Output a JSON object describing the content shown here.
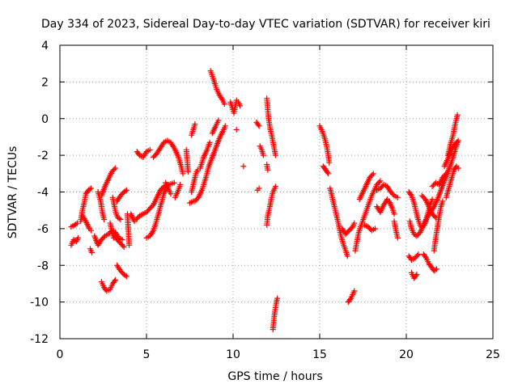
{
  "chart_data": {
    "type": "scatter",
    "title": "Day 334 of 2023, Sidereal Day-to-day VTEC variation (SDTVAR) for receiver kiri",
    "xlabel": "GPS time / hours",
    "ylabel": "SDTVAR / TECUs",
    "xlim": [
      0,
      25
    ],
    "ylim": [
      -12,
      4
    ],
    "xticks": [
      0,
      5,
      10,
      15,
      20,
      25
    ],
    "yticks": [
      -12,
      -10,
      -8,
      -6,
      -4,
      -2,
      0,
      2,
      4
    ],
    "grid": true,
    "marker": "+",
    "color": "#ff0000",
    "tracks": [
      [
        [
          0.65,
          -6.9
        ],
        [
          0.8,
          -6.6
        ],
        [
          0.95,
          -6.7
        ],
        [
          1.05,
          -6.5
        ]
      ],
      [
        [
          0.65,
          -5.9
        ],
        [
          0.85,
          -5.8
        ],
        [
          1.0,
          -5.7
        ]
      ],
      [
        [
          1.2,
          -5.6
        ],
        [
          1.3,
          -5.0
        ],
        [
          1.4,
          -4.6
        ],
        [
          1.5,
          -4.1
        ],
        [
          1.65,
          -3.9
        ],
        [
          1.8,
          -3.8
        ]
      ],
      [
        [
          1.3,
          -5.3
        ],
        [
          1.5,
          -5.6
        ],
        [
          1.7,
          -6.0
        ],
        [
          1.8,
          -6.1
        ]
      ],
      [
        [
          1.75,
          -7.1
        ],
        [
          1.85,
          -7.3
        ]
      ],
      [
        [
          2.0,
          -6.4
        ],
        [
          2.2,
          -6.9
        ],
        [
          2.4,
          -6.6
        ],
        [
          2.6,
          -6.4
        ],
        [
          2.8,
          -6.3
        ],
        [
          3.0,
          -6.1
        ],
        [
          3.2,
          -6.2
        ],
        [
          3.4,
          -6.5
        ],
        [
          3.6,
          -6.6
        ]
      ],
      [
        [
          2.2,
          -4.0
        ],
        [
          2.35,
          -4.5
        ],
        [
          2.45,
          -5.1
        ],
        [
          2.55,
          -5.5
        ]
      ],
      [
        [
          2.4,
          -4.2
        ],
        [
          2.6,
          -3.7
        ],
        [
          2.8,
          -3.3
        ],
        [
          3.0,
          -2.9
        ],
        [
          3.2,
          -2.7
        ]
      ],
      [
        [
          2.4,
          -8.9
        ],
        [
          2.55,
          -9.2
        ],
        [
          2.7,
          -9.4
        ],
        [
          2.9,
          -9.3
        ],
        [
          3.05,
          -9.0
        ],
        [
          3.2,
          -8.8
        ]
      ],
      [
        [
          2.9,
          -5.7
        ],
        [
          3.0,
          -6.1
        ],
        [
          3.1,
          -6.5
        ]
      ],
      [
        [
          3.05,
          -4.3
        ],
        [
          3.15,
          -4.8
        ],
        [
          3.25,
          -5.2
        ],
        [
          3.35,
          -5.4
        ],
        [
          3.5,
          -5.5
        ]
      ],
      [
        [
          3.1,
          -6.3
        ],
        [
          3.3,
          -6.6
        ],
        [
          3.5,
          -6.8
        ],
        [
          3.7,
          -7.0
        ]
      ],
      [
        [
          3.3,
          -8.0
        ],
        [
          3.5,
          -8.3
        ],
        [
          3.7,
          -8.5
        ],
        [
          3.85,
          -8.6
        ]
      ],
      [
        [
          3.3,
          -4.5
        ],
        [
          3.5,
          -4.2
        ],
        [
          3.7,
          -4.0
        ],
        [
          3.85,
          -3.9
        ]
      ],
      [
        [
          4.1,
          -5.2
        ],
        [
          4.3,
          -5.6
        ],
        [
          4.4,
          -5.5
        ],
        [
          4.6,
          -5.3
        ],
        [
          4.8,
          -5.2
        ],
        [
          5.0,
          -5.1
        ],
        [
          5.2,
          -4.9
        ],
        [
          5.4,
          -4.7
        ],
        [
          5.6,
          -4.3
        ],
        [
          5.8,
          -3.9
        ],
        [
          6.0,
          -3.7
        ],
        [
          6.3,
          -3.6
        ],
        [
          6.6,
          -3.5
        ]
      ],
      [
        [
          3.9,
          -5.2
        ],
        [
          4.0,
          -6.9
        ]
      ],
      [
        [
          4.45,
          -1.8
        ],
        [
          4.6,
          -2.0
        ],
        [
          4.8,
          -2.1
        ],
        [
          5.0,
          -1.8
        ],
        [
          5.2,
          -1.7
        ]
      ],
      [
        [
          5.4,
          -2.1
        ],
        [
          5.6,
          -1.9
        ],
        [
          5.8,
          -1.6
        ],
        [
          6.0,
          -1.3
        ],
        [
          6.2,
          -1.2
        ],
        [
          6.4,
          -1.3
        ],
        [
          6.6,
          -1.6
        ],
        [
          6.8,
          -2.0
        ],
        [
          6.95,
          -2.4
        ]
      ],
      [
        [
          5.0,
          -6.5
        ],
        [
          5.2,
          -6.4
        ],
        [
          5.4,
          -6.1
        ],
        [
          5.6,
          -5.5
        ],
        [
          5.8,
          -4.8
        ],
        [
          6.0,
          -4.1
        ],
        [
          6.2,
          -3.6
        ]
      ],
      [
        [
          6.1,
          -3.5
        ],
        [
          6.25,
          -3.8
        ],
        [
          6.4,
          -4.1
        ]
      ],
      [
        [
          6.65,
          -4.3
        ],
        [
          6.8,
          -4.0
        ],
        [
          6.95,
          -3.6
        ]
      ],
      [
        [
          6.9,
          -2.3
        ],
        [
          7.0,
          -2.6
        ],
        [
          7.1,
          -3.0
        ]
      ],
      [
        [
          7.3,
          -1.7
        ],
        [
          7.4,
          -2.9
        ]
      ],
      [
        [
          7.5,
          -4.6
        ],
        [
          7.7,
          -4.5
        ]
      ],
      [
        [
          7.6,
          -4.0
        ],
        [
          7.75,
          -3.4
        ],
        [
          7.85,
          -3.0
        ],
        [
          7.95,
          -2.8
        ]
      ],
      [
        [
          7.6,
          -0.9
        ],
        [
          7.7,
          -0.6
        ],
        [
          7.8,
          -0.3
        ]
      ],
      [
        [
          7.8,
          -4.5
        ],
        [
          8.0,
          -4.3
        ],
        [
          8.2,
          -3.9
        ],
        [
          8.4,
          -3.3
        ],
        [
          8.6,
          -2.6
        ],
        [
          8.8,
          -2.1
        ],
        [
          9.0,
          -1.6
        ],
        [
          9.2,
          -1.1
        ],
        [
          9.4,
          -0.7
        ],
        [
          9.55,
          -0.4
        ]
      ],
      [
        [
          8.8,
          -0.8
        ],
        [
          9.0,
          -0.4
        ],
        [
          9.15,
          -0.1
        ]
      ],
      [
        [
          8.1,
          -2.7
        ],
        [
          8.3,
          -2.1
        ],
        [
          8.5,
          -1.7
        ],
        [
          8.65,
          -1.3
        ]
      ],
      [
        [
          8.7,
          2.6
        ],
        [
          8.85,
          2.2
        ],
        [
          8.95,
          1.9
        ],
        [
          9.05,
          1.6
        ],
        [
          9.2,
          1.3
        ],
        [
          9.4,
          1.0
        ],
        [
          9.5,
          0.8
        ]
      ],
      [
        [
          9.85,
          0.9
        ],
        [
          9.95,
          0.6
        ],
        [
          10.05,
          0.3
        ],
        [
          10.2,
          1.0
        ],
        [
          10.3,
          0.9
        ],
        [
          10.4,
          0.7
        ]
      ],
      [
        [
          10.2,
          -0.6
        ]
      ],
      [
        [
          10.6,
          -2.6
        ]
      ],
      [
        [
          11.35,
          -0.2
        ],
        [
          11.5,
          -0.4
        ]
      ],
      [
        [
          11.55,
          -1.5
        ],
        [
          11.65,
          -1.7
        ],
        [
          11.75,
          -2.0
        ]
      ],
      [
        [
          11.4,
          -3.9
        ],
        [
          11.5,
          -3.8
        ]
      ],
      [
        [
          11.95,
          1.1
        ],
        [
          12.0,
          0.5
        ],
        [
          12.05,
          0.0
        ],
        [
          12.15,
          -0.6
        ],
        [
          12.25,
          -1.0
        ],
        [
          12.35,
          -1.5
        ],
        [
          12.45,
          -2.0
        ]
      ],
      [
        [
          11.95,
          -2.5
        ],
        [
          12.0,
          -2.8
        ]
      ],
      [
        [
          11.95,
          -5.8
        ],
        [
          12.0,
          -5.3
        ],
        [
          12.1,
          -4.9
        ],
        [
          12.2,
          -4.4
        ],
        [
          12.3,
          -4.0
        ],
        [
          12.45,
          -3.7
        ]
      ],
      [
        [
          12.3,
          -11.5
        ],
        [
          12.35,
          -11.0
        ],
        [
          12.4,
          -10.6
        ],
        [
          12.5,
          -10.0
        ],
        [
          12.55,
          -9.8
        ]
      ],
      [
        [
          15.0,
          -0.4
        ],
        [
          15.15,
          -0.7
        ],
        [
          15.3,
          -1.1
        ],
        [
          15.4,
          -1.5
        ],
        [
          15.5,
          -2.0
        ],
        [
          15.55,
          -2.4
        ]
      ],
      [
        [
          15.2,
          -2.6
        ],
        [
          15.35,
          -2.8
        ],
        [
          15.5,
          -3.0
        ]
      ],
      [
        [
          15.6,
          -3.8
        ],
        [
          15.7,
          -4.2
        ],
        [
          15.8,
          -4.6
        ],
        [
          15.9,
          -5.0
        ],
        [
          16.0,
          -5.4
        ],
        [
          16.1,
          -5.8
        ],
        [
          16.2,
          -6.3
        ],
        [
          16.35,
          -6.8
        ],
        [
          16.5,
          -7.2
        ],
        [
          16.6,
          -7.5
        ]
      ],
      [
        [
          16.3,
          -6.0
        ],
        [
          16.5,
          -6.3
        ],
        [
          16.7,
          -6.1
        ],
        [
          16.9,
          -5.9
        ],
        [
          17.0,
          -5.7
        ]
      ],
      [
        [
          16.65,
          -10.0
        ],
        [
          16.8,
          -9.8
        ],
        [
          16.9,
          -9.6
        ],
        [
          17.0,
          -9.4
        ]
      ],
      [
        [
          17.05,
          -7.2
        ],
        [
          17.15,
          -6.7
        ],
        [
          17.25,
          -6.2
        ],
        [
          17.4,
          -5.8
        ],
        [
          17.55,
          -5.4
        ],
        [
          17.7,
          -5.0
        ],
        [
          17.85,
          -4.6
        ],
        [
          18.0,
          -4.2
        ],
        [
          18.15,
          -3.9
        ],
        [
          18.3,
          -3.6
        ],
        [
          18.5,
          -3.4
        ]
      ],
      [
        [
          17.3,
          -4.4
        ],
        [
          17.5,
          -4.0
        ],
        [
          17.7,
          -3.6
        ],
        [
          17.9,
          -3.2
        ],
        [
          18.1,
          -3.0
        ]
      ],
      [
        [
          17.6,
          -5.8
        ],
        [
          17.8,
          -5.9
        ],
        [
          18.0,
          -6.1
        ],
        [
          18.2,
          -6.0
        ]
      ],
      [
        [
          18.3,
          -3.9
        ],
        [
          18.5,
          -3.8
        ],
        [
          18.7,
          -3.6
        ],
        [
          18.9,
          -3.7
        ],
        [
          19.1,
          -4.0
        ],
        [
          19.3,
          -4.2
        ],
        [
          19.5,
          -4.3
        ]
      ],
      [
        [
          18.3,
          -4.8
        ],
        [
          18.5,
          -5.1
        ],
        [
          18.7,
          -4.7
        ],
        [
          18.9,
          -4.4
        ]
      ],
      [
        [
          19.0,
          -4.5
        ],
        [
          19.2,
          -4.9
        ],
        [
          19.3,
          -5.2
        ]
      ],
      [
        [
          19.3,
          -5.6
        ],
        [
          19.4,
          -6.1
        ],
        [
          19.5,
          -6.5
        ]
      ],
      [
        [
          20.15,
          -4.0
        ],
        [
          20.3,
          -4.2
        ],
        [
          20.45,
          -4.6
        ],
        [
          20.55,
          -5.0
        ],
        [
          20.65,
          -5.4
        ],
        [
          20.75,
          -5.7
        ],
        [
          20.85,
          -5.9
        ]
      ],
      [
        [
          20.2,
          -5.6
        ],
        [
          20.3,
          -6.0
        ],
        [
          20.45,
          -6.3
        ],
        [
          20.6,
          -6.4
        ],
        [
          20.8,
          -6.2
        ],
        [
          21.0,
          -5.8
        ],
        [
          21.2,
          -5.4
        ],
        [
          21.4,
          -5.1
        ],
        [
          21.6,
          -4.8
        ],
        [
          21.8,
          -4.4
        ],
        [
          22.0,
          -3.9
        ],
        [
          22.2,
          -3.4
        ],
        [
          22.4,
          -2.9
        ],
        [
          22.6,
          -2.4
        ],
        [
          22.8,
          -1.8
        ],
        [
          22.95,
          -1.3
        ]
      ],
      [
        [
          20.15,
          -7.5
        ],
        [
          20.3,
          -7.7
        ],
        [
          20.5,
          -7.6
        ],
        [
          20.7,
          -7.4
        ]
      ],
      [
        [
          20.3,
          -8.4
        ],
        [
          20.45,
          -8.7
        ],
        [
          20.6,
          -8.5
        ]
      ],
      [
        [
          20.9,
          -4.2
        ],
        [
          21.1,
          -4.4
        ],
        [
          21.3,
          -4.8
        ],
        [
          21.5,
          -5.2
        ],
        [
          21.7,
          -5.4
        ]
      ],
      [
        [
          21.05,
          -5.8
        ],
        [
          21.2,
          -5.3
        ],
        [
          21.35,
          -4.8
        ],
        [
          21.5,
          -4.4
        ]
      ],
      [
        [
          21.0,
          -7.4
        ],
        [
          21.15,
          -7.6
        ],
        [
          21.3,
          -7.9
        ],
        [
          21.45,
          -8.1
        ],
        [
          21.6,
          -8.3
        ],
        [
          21.75,
          -8.2
        ]
      ],
      [
        [
          21.5,
          -3.7
        ],
        [
          21.7,
          -3.5
        ],
        [
          21.9,
          -3.6
        ],
        [
          22.1,
          -3.2
        ],
        [
          22.3,
          -3.0
        ]
      ],
      [
        [
          21.6,
          -7.2
        ],
        [
          21.7,
          -6.5
        ],
        [
          21.8,
          -5.9
        ],
        [
          21.9,
          -5.3
        ],
        [
          22.0,
          -4.8
        ],
        [
          22.1,
          -4.5
        ]
      ],
      [
        [
          22.3,
          -4.3
        ],
        [
          22.45,
          -3.8
        ],
        [
          22.6,
          -3.3
        ],
        [
          22.75,
          -2.8
        ],
        [
          22.9,
          -2.6
        ],
        [
          23.0,
          -2.7
        ]
      ],
      [
        [
          22.4,
          -2.0
        ],
        [
          22.55,
          -1.4
        ],
        [
          22.7,
          -0.9
        ],
        [
          22.8,
          -0.4
        ],
        [
          22.9,
          0.0
        ],
        [
          22.95,
          0.2
        ]
      ],
      [
        [
          22.2,
          -2.6
        ],
        [
          22.4,
          -2.2
        ],
        [
          22.6,
          -1.7
        ],
        [
          22.8,
          -1.4
        ],
        [
          23.0,
          -1.2
        ]
      ]
    ]
  }
}
